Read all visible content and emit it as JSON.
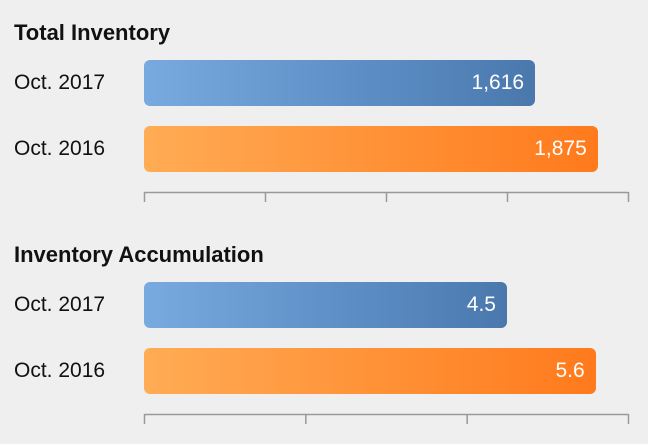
{
  "chart_data": [
    {
      "type": "bar",
      "orientation": "horizontal",
      "title": "Total Inventory",
      "categories": [
        "Oct. 2017",
        "Oct. 2016"
      ],
      "values": [
        1616,
        1875
      ],
      "value_labels": [
        "1,616",
        "1,875"
      ],
      "colors": [
        "#5d8fc6",
        "#ff8c30"
      ],
      "xlim": [
        0,
        2000
      ],
      "x_ticks": [
        0,
        500,
        1000,
        1500,
        2000
      ],
      "tick_labels_visible": false,
      "grid": false
    },
    {
      "type": "bar",
      "orientation": "horizontal",
      "title": "Inventory Accumulation",
      "categories": [
        "Oct. 2017",
        "Oct. 2016"
      ],
      "values": [
        4.5,
        5.6
      ],
      "value_labels": [
        "4.5",
        "5.6"
      ],
      "colors": [
        "#5d8fc6",
        "#ff8c30"
      ],
      "xlim": [
        0,
        6
      ],
      "x_ticks": [
        0,
        2,
        4,
        6
      ],
      "tick_labels_visible": false,
      "grid": false
    }
  ],
  "colors": {
    "background": "#efefef",
    "axis": "#999999",
    "blue_bar": "#5d8fc6",
    "orange_bar": "#ff8c30"
  }
}
